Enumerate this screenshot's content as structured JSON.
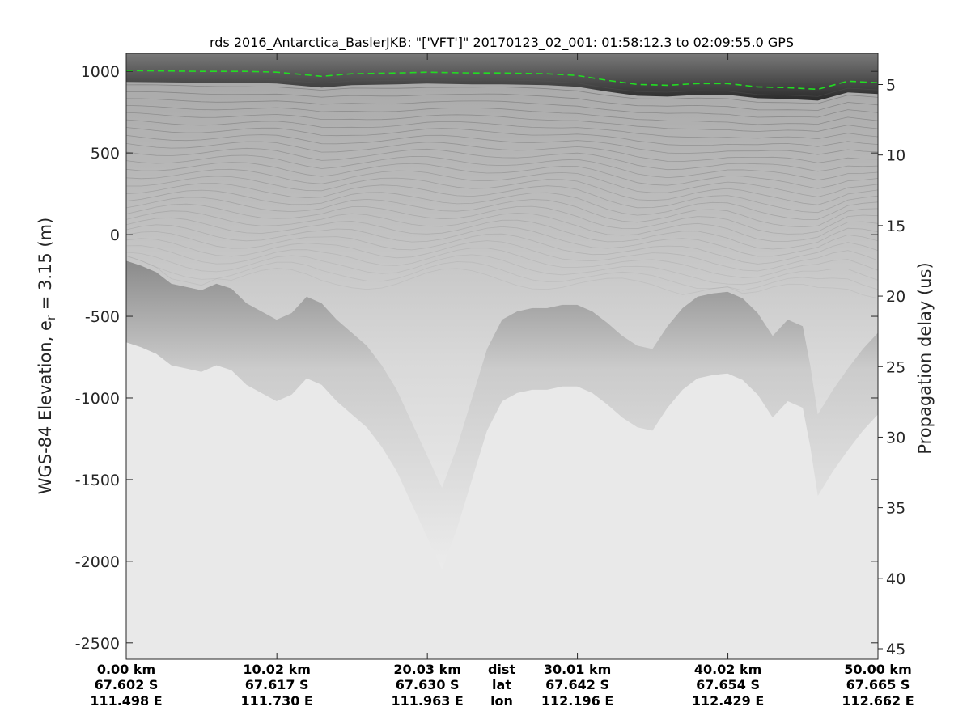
{
  "chart_data": {
    "type": "heatmap",
    "title": "rds 2016_Antarctica_BaslerJKB: \"['VFT']\"  20170123_02_001: 01:58:12.3 to 02:09:55.0 GPS",
    "ylabel_left_prefix": "WGS-84 Elevation, e",
    "ylabel_left_sub": "r",
    "ylabel_left_suffix": " = 3.15 (m)",
    "ylabel_right": "Propagation delay (us)",
    "colormap": "grayscale",
    "ylim_left": [
      -2600,
      1110
    ],
    "yticks_left": [
      1000,
      500,
      0,
      -500,
      -1000,
      -1500,
      -2000,
      -2500
    ],
    "ytick_labels_left": [
      "1000",
      "500",
      "0",
      "-500",
      "-1000",
      "-1500",
      "-2000",
      "-2500"
    ],
    "yticks_right": [
      5,
      10,
      15,
      20,
      25,
      30,
      35,
      40,
      45
    ],
    "ytick_labels_right": [
      "5",
      "10",
      "15",
      "20",
      "25",
      "30",
      "35",
      "40",
      "45"
    ],
    "xlim_km": [
      0,
      50
    ],
    "x_ticks": [
      {
        "dist": "0.00 km",
        "lat": "67.602 S",
        "lon": "111.498 E",
        "km": 0.0
      },
      {
        "dist": "10.02 km",
        "lat": "67.617 S",
        "lon": "111.730 E",
        "km": 10.02
      },
      {
        "dist": "20.03 km",
        "lat": "67.630 S",
        "lon": "111.963 E",
        "km": 20.03
      },
      {
        "dist": "30.01 km",
        "lat": "67.642 S",
        "lon": "112.196 E",
        "km": 30.01
      },
      {
        "dist": "40.02 km",
        "lat": "67.654 S",
        "lon": "112.429 E",
        "km": 40.02
      },
      {
        "dist": "50.00 km",
        "lat": "67.665 S",
        "lon": "112.662 E",
        "km": 50.0
      }
    ],
    "x_row_labels": {
      "dist": "dist",
      "lat": "lat",
      "lon": "lon"
    },
    "surface_line": {
      "name": "surface",
      "color": "#22dd22",
      "style": "dashed",
      "x_km": [
        0,
        5,
        8,
        10,
        13,
        15,
        18,
        20,
        23,
        25,
        28,
        30,
        32,
        34,
        36,
        38,
        40,
        42,
        44,
        46,
        48,
        50
      ],
      "elevation_m": [
        1005,
        1000,
        1000,
        995,
        970,
        985,
        990,
        995,
        990,
        990,
        985,
        975,
        945,
        920,
        915,
        925,
        925,
        905,
        900,
        890,
        940,
        930
      ]
    },
    "bed_line": {
      "x_km": [
        0,
        1,
        2,
        3,
        4,
        5,
        6,
        7,
        8,
        9,
        10,
        11,
        12,
        13,
        14,
        15,
        16,
        17,
        18,
        19,
        20,
        21,
        22,
        23,
        24,
        25,
        26,
        27,
        28,
        29,
        30,
        31,
        32,
        33,
        34,
        35,
        36,
        37,
        38,
        39,
        40,
        41,
        42,
        43,
        44,
        45,
        45.5,
        46,
        47,
        48,
        49,
        50
      ],
      "elevation_m": [
        -160,
        -190,
        -230,
        -300,
        -320,
        -340,
        -300,
        -330,
        -420,
        -470,
        -520,
        -480,
        -380,
        -420,
        -520,
        -600,
        -680,
        -800,
        -950,
        -1150,
        -1350,
        -1550,
        -1300,
        -1000,
        -700,
        -520,
        -470,
        -450,
        -450,
        -430,
        -430,
        -470,
        -540,
        -620,
        -680,
        -700,
        -560,
        -450,
        -380,
        -360,
        -350,
        -390,
        -480,
        -620,
        -520,
        -560,
        -800,
        -1100,
        -950,
        -820,
        -700,
        -600
      ]
    }
  }
}
